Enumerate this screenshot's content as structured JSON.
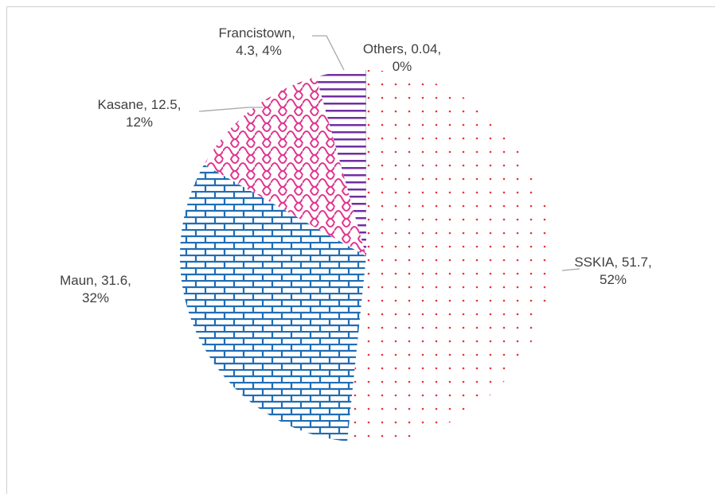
{
  "chart_data": {
    "type": "pie",
    "categories": [
      "SSKIA",
      "Maun",
      "Kasane",
      "Francistown",
      "Others"
    ],
    "values": [
      51.7,
      31.6,
      12.5,
      4.3,
      0.04
    ],
    "value_labels": [
      "52%",
      "32%",
      "12%",
      "4%",
      "0%"
    ],
    "colors": [
      "#e8353a",
      "#1f6db5",
      "#e0368f",
      "#7030a0",
      "#8a8a8a"
    ]
  }
}
